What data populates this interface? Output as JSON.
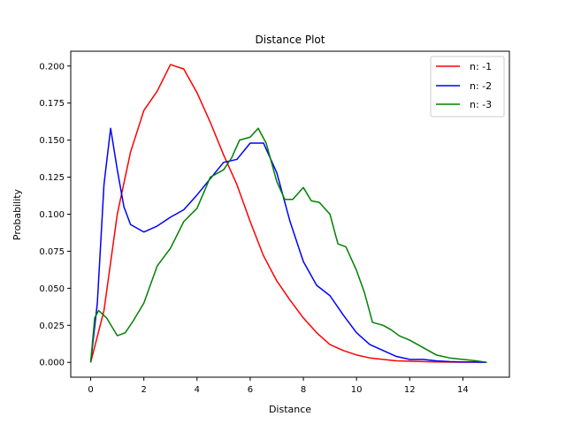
{
  "chart_data": {
    "type": "line",
    "title": "Distance Plot",
    "xlabel": "Distance",
    "ylabel": "Probability",
    "xlim": [
      -0.75,
      15.75
    ],
    "ylim": [
      -0.01,
      0.21
    ],
    "xticks": [
      0,
      2,
      4,
      6,
      8,
      10,
      12,
      14
    ],
    "yticks": [
      0.0,
      0.025,
      0.05,
      0.075,
      0.1,
      0.125,
      0.15,
      0.175,
      0.2
    ],
    "xtick_labels": [
      "0",
      "2",
      "4",
      "6",
      "8",
      "10",
      "12",
      "14"
    ],
    "ytick_labels": [
      "0.000",
      "0.025",
      "0.050",
      "0.075",
      "0.100",
      "0.125",
      "0.150",
      "0.175",
      "0.200"
    ],
    "grid": false,
    "legend_position": "top-right",
    "series": [
      {
        "name": "n: -1",
        "color": "#ff0000",
        "x": [
          0,
          0.5,
          1,
          1.5,
          2,
          2.5,
          3,
          3.5,
          4,
          4.5,
          5,
          5.5,
          6,
          6.5,
          7,
          7.5,
          8,
          8.5,
          9,
          9.5,
          10,
          10.5,
          11,
          11.5,
          12,
          12.5,
          13,
          13.5,
          14,
          14.5,
          14.9
        ],
        "y": [
          0.0,
          0.035,
          0.1,
          0.142,
          0.17,
          0.183,
          0.201,
          0.198,
          0.182,
          0.162,
          0.14,
          0.12,
          0.095,
          0.072,
          0.055,
          0.042,
          0.03,
          0.02,
          0.012,
          0.008,
          0.005,
          0.003,
          0.002,
          0.001,
          0.0008,
          0.0005,
          0.0003,
          0.0002,
          0.0001,
          0.0001,
          0.0
        ]
      },
      {
        "name": "n: -2",
        "color": "#0000ff",
        "x": [
          0,
          0.25,
          0.5,
          0.75,
          1,
          1.25,
          1.5,
          2,
          2.5,
          3,
          3.5,
          4,
          4.5,
          5,
          5.5,
          6,
          6.5,
          7,
          7.5,
          8,
          8.5,
          9,
          9.5,
          10,
          10.5,
          11,
          11.5,
          12,
          12.5,
          13,
          13.5,
          14,
          14.5,
          14.9
        ],
        "y": [
          0.0,
          0.04,
          0.12,
          0.158,
          0.13,
          0.105,
          0.093,
          0.088,
          0.092,
          0.098,
          0.103,
          0.113,
          0.124,
          0.135,
          0.137,
          0.148,
          0.148,
          0.128,
          0.095,
          0.068,
          0.052,
          0.045,
          0.032,
          0.02,
          0.012,
          0.008,
          0.004,
          0.002,
          0.002,
          0.001,
          0.0005,
          0.0003,
          0.0002,
          0.0
        ]
      },
      {
        "name": "n: -3",
        "color": "#008000",
        "x": [
          0,
          0.15,
          0.3,
          0.6,
          1,
          1.3,
          1.6,
          2,
          2.5,
          3,
          3.5,
          4,
          4.5,
          5,
          5.3,
          5.6,
          6,
          6.3,
          6.6,
          7,
          7.3,
          7.6,
          8,
          8.3,
          8.6,
          9,
          9.3,
          9.6,
          10,
          10.3,
          10.6,
          11,
          11.3,
          11.6,
          12,
          12.5,
          13,
          13.5,
          14,
          14.5,
          14.9
        ],
        "y": [
          0.0,
          0.03,
          0.035,
          0.03,
          0.018,
          0.02,
          0.028,
          0.04,
          0.065,
          0.077,
          0.095,
          0.104,
          0.125,
          0.13,
          0.138,
          0.15,
          0.152,
          0.158,
          0.148,
          0.122,
          0.11,
          0.11,
          0.118,
          0.109,
          0.108,
          0.1,
          0.08,
          0.078,
          0.062,
          0.047,
          0.027,
          0.025,
          0.022,
          0.018,
          0.015,
          0.01,
          0.005,
          0.003,
          0.002,
          0.001,
          0.0
        ]
      }
    ]
  }
}
